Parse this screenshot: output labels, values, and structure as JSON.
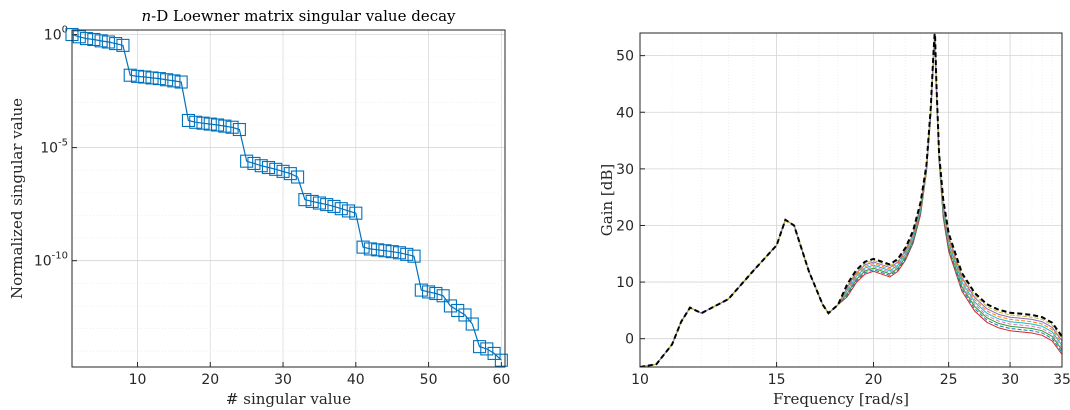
{
  "chart_data": [
    {
      "type": "scatter",
      "title_italic": "n",
      "title_rest": "-D Loewner matrix singular value decay",
      "xlabel": "# singular value",
      "ylabel": "Normalized singular value",
      "xlim": [
        1,
        60.5
      ],
      "ylim_log10": [
        -14.7,
        0.2
      ],
      "yscale": "log",
      "grid": true,
      "x_ticks": [
        10,
        20,
        30,
        40,
        50,
        60
      ],
      "y_ticks": [
        {
          "base": "10",
          "exp": "0",
          "value": 1
        },
        {
          "base": "10",
          "exp": "-5",
          "value": 1e-05
        },
        {
          "base": "10",
          "exp": "-10",
          "value": 1e-10
        }
      ],
      "color": "#0072BD",
      "marker": "square",
      "x": [
        1,
        2,
        3,
        4,
        5,
        6,
        7,
        8,
        9,
        10,
        11,
        12,
        13,
        14,
        15,
        16,
        17,
        18,
        19,
        20,
        21,
        22,
        23,
        24,
        25,
        26,
        27,
        28,
        29,
        30,
        31,
        32,
        33,
        34,
        35,
        36,
        37,
        38,
        39,
        40,
        41,
        42,
        43,
        44,
        45,
        46,
        47,
        48,
        49,
        50,
        51,
        52,
        53,
        54,
        55,
        56,
        57,
        58,
        59,
        60
      ],
      "log10_y": [
        0,
        -0.1,
        -0.18,
        -0.22,
        -0.28,
        -0.33,
        -0.4,
        -0.48,
        -1.8,
        -1.85,
        -1.88,
        -1.92,
        -1.95,
        -2.0,
        -2.05,
        -2.1,
        -3.8,
        -3.88,
        -3.92,
        -3.96,
        -4.0,
        -4.05,
        -4.1,
        -4.2,
        -5.6,
        -5.7,
        -5.8,
        -5.88,
        -5.96,
        -6.05,
        -6.15,
        -6.3,
        -7.3,
        -7.38,
        -7.45,
        -7.52,
        -7.6,
        -7.7,
        -7.8,
        -7.9,
        -9.4,
        -9.48,
        -9.52,
        -9.56,
        -9.6,
        -9.65,
        -9.72,
        -9.8,
        -11.3,
        -11.38,
        -11.45,
        -11.55,
        -12.0,
        -12.2,
        -12.4,
        -12.8,
        -13.8,
        -13.9,
        -14.1,
        -14.4
      ]
    },
    {
      "type": "line",
      "xlabel": "Frequency [rad/s]",
      "ylabel": "Gain [dB]",
      "xscale": "log",
      "xlim": [
        10,
        35
      ],
      "ylim": [
        -5,
        54
      ],
      "grid": true,
      "x_ticks": [
        10,
        15,
        20,
        25,
        30,
        35
      ],
      "y_ticks": [
        0,
        10,
        20,
        30,
        40,
        50
      ],
      "series_colors": [
        "#d62728",
        "#1f77b4",
        "#2ca02c",
        "#e377c2",
        "#17becf",
        "#ff7f0e",
        "#9467bd",
        "#bcbd22",
        "#000000"
      ],
      "curve_count": 9,
      "base_curve": {
        "x": [
          10,
          10.5,
          11,
          11.3,
          11.6,
          12.0,
          13.0,
          14.0,
          15.0,
          15.4,
          15.8,
          16.5,
          17.2,
          17.5,
          18.0,
          18.5,
          19.0,
          19.5,
          20.0,
          20.5,
          21.0,
          21.5,
          22.0,
          22.5,
          23.0,
          23.4,
          23.7,
          23.9,
          24.0,
          24.1,
          24.3,
          24.6,
          25.0,
          26.0,
          27.0,
          28.0,
          29.0,
          30.0,
          31.0,
          32.0,
          33.0,
          34.0,
          35.0
        ],
        "y": [
          -5,
          -4.5,
          -1,
          3,
          5.5,
          4.5,
          7,
          12,
          16.5,
          21,
          20,
          12,
          6,
          4.5,
          6,
          8.5,
          11,
          12.5,
          13,
          12.5,
          12,
          13,
          15,
          18,
          23,
          30,
          40,
          50,
          54,
          45,
          32,
          23,
          17,
          10,
          6.5,
          4.5,
          3.5,
          3,
          2.8,
          2.6,
          2.2,
          1.2,
          -1.2
        ]
      }
    }
  ]
}
